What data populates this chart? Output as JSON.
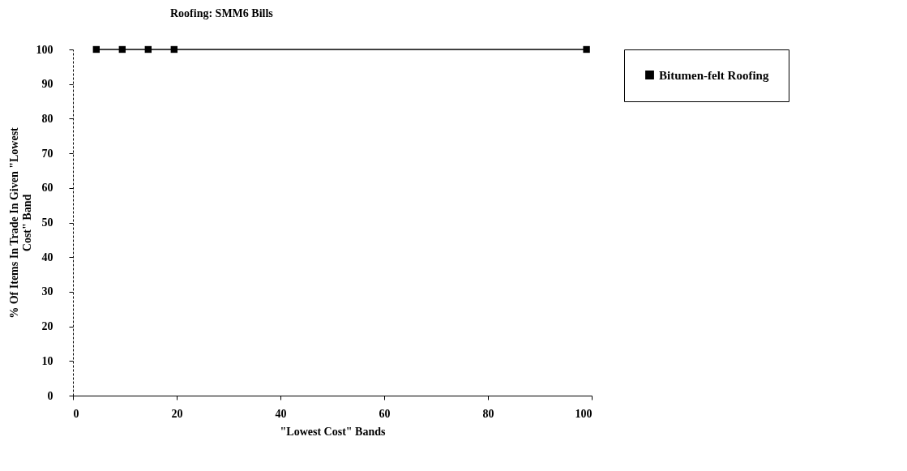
{
  "chart_data": {
    "type": "line",
    "title": "Roofing: SMM6 Bills",
    "xlabel": "\"Lowest Cost\" Bands",
    "ylabel": "% Of Items In Trade In Given \"Lowest Cost\" Band",
    "x": [
      4.5,
      9.5,
      14.5,
      19.5,
      99
    ],
    "series": [
      {
        "name": "Bitumen-felt Roofing",
        "color": "#000000",
        "values": [
          100,
          100,
          100,
          100,
          100
        ]
      }
    ],
    "xlim": [
      0,
      100
    ],
    "xticks": [
      0,
      20,
      40,
      60,
      80,
      100
    ],
    "ylim": [
      0,
      100
    ],
    "yticks": [
      0,
      10,
      20,
      30,
      40,
      50,
      60,
      70,
      80,
      90,
      100
    ],
    "grid": false,
    "legend": "right",
    "marker": "square",
    "line_style": "solid"
  }
}
